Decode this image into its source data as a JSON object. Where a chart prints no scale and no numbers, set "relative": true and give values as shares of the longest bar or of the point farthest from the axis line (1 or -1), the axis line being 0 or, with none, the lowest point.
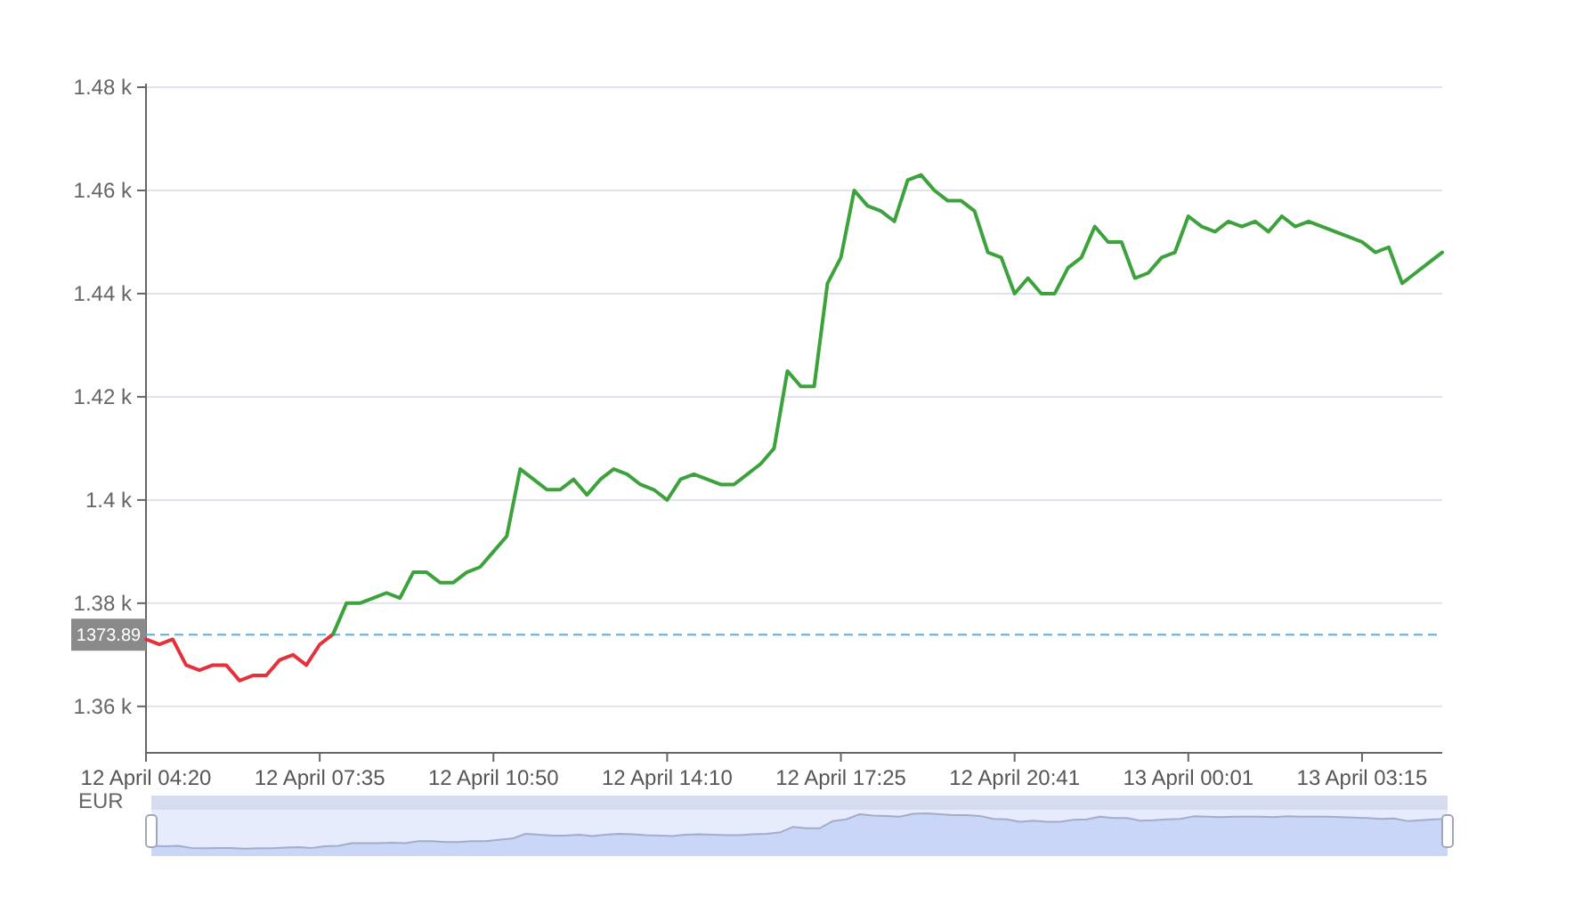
{
  "chart_data": [
    {
      "type": "line",
      "categories": [
        "12 April 04:20",
        null,
        null,
        null,
        null,
        null,
        null,
        null,
        null,
        null,
        null,
        null,
        null,
        "12 April 07:35",
        null,
        null,
        null,
        null,
        null,
        null,
        null,
        null,
        null,
        null,
        null,
        null,
        "12 April 10:50",
        null,
        null,
        null,
        null,
        null,
        null,
        null,
        null,
        null,
        null,
        null,
        null,
        "12 April 14:10",
        null,
        null,
        null,
        null,
        null,
        null,
        null,
        null,
        null,
        null,
        null,
        null,
        "12 April 17:25",
        null,
        null,
        null,
        null,
        null,
        null,
        null,
        null,
        null,
        null,
        null,
        null,
        "12 April 20:41",
        null,
        null,
        null,
        null,
        null,
        null,
        null,
        null,
        null,
        null,
        null,
        null,
        "13 April 00:01",
        null,
        null,
        null,
        null,
        null,
        null,
        null,
        null,
        null,
        null,
        null,
        null,
        "13 April 03:15",
        null,
        null,
        null,
        null,
        null,
        null
      ],
      "ylabel": "EUR",
      "ylim": [
        1351,
        1480
      ],
      "yticks": [
        {
          "value": 1360,
          "label": "1.36 k"
        },
        {
          "value": 1380,
          "label": "1.38 k"
        },
        {
          "value": 1400,
          "label": "1.4 k"
        },
        {
          "value": 1420,
          "label": "1.42 k"
        },
        {
          "value": 1440,
          "label": "1.44 k"
        },
        {
          "value": 1460,
          "label": "1.46 k"
        },
        {
          "value": 1480,
          "label": "1.48 k"
        }
      ],
      "grid": "y",
      "series": [
        {
          "color": "#e4313b",
          "values": [
            1373,
            1372,
            1373,
            1368,
            1367,
            1368,
            1368,
            1365,
            1366,
            1366,
            1369,
            1370,
            1368,
            1372,
            1374,
            null,
            null,
            null,
            null,
            null,
            null,
            null,
            null,
            null,
            null,
            null,
            null,
            null,
            null,
            null,
            null,
            null,
            null,
            null,
            null,
            null,
            null,
            null,
            null,
            null,
            null,
            null,
            null,
            null,
            null,
            null,
            null,
            null,
            null,
            null,
            null,
            null,
            null,
            null,
            null,
            null,
            null,
            null,
            null,
            null,
            null,
            null,
            null,
            null,
            null,
            null,
            null,
            null,
            null,
            null,
            null,
            null,
            null,
            null,
            null,
            null,
            null,
            null,
            null,
            null,
            null,
            null,
            null,
            null,
            null,
            null,
            null,
            null,
            null,
            null,
            null,
            null,
            null,
            null,
            null,
            null,
            null,
            null
          ]
        },
        {
          "color": "#3ca23c",
          "values": [
            null,
            null,
            null,
            null,
            null,
            null,
            null,
            null,
            null,
            null,
            null,
            null,
            null,
            null,
            1374,
            1380,
            1380,
            1381,
            1382,
            1381,
            1386,
            1386,
            1384,
            1384,
            1386,
            1387,
            1390,
            1393,
            1406,
            1404,
            1402,
            1402,
            1404,
            1401,
            1404,
            1406,
            1405,
            1403,
            1402,
            1400,
            1404,
            1405,
            1404,
            1403,
            1403,
            1405,
            1407,
            1410,
            1425,
            1422,
            1422,
            1442,
            1447,
            1460,
            1457,
            1456,
            1454,
            1462,
            1463,
            1460,
            1458,
            1458,
            1456,
            1448,
            1447,
            1440,
            1443,
            1440,
            1440,
            1445,
            1447,
            1453,
            1450,
            1450,
            1443,
            1444,
            1447,
            1448,
            1455,
            1453,
            1452,
            1454,
            1453,
            1454,
            1452,
            1455,
            1453,
            1454,
            1453,
            1452,
            1451,
            1450,
            1448,
            1449,
            1442,
            1444,
            1446,
            1448
          ]
        }
      ],
      "ref_lines": [
        {
          "axis": "y",
          "value": 1373.89,
          "label": "1373.89",
          "color": "#5aaee0",
          "line_style": "dashed"
        }
      ]
    },
    {
      "type": "area",
      "relative": true,
      "categories": [
        null,
        null,
        null,
        null,
        null,
        null,
        null,
        null,
        null,
        null,
        null,
        null,
        null,
        null,
        null,
        null,
        null,
        null,
        null,
        null,
        null,
        null,
        null,
        null,
        null,
        null,
        null,
        null,
        null,
        null,
        null,
        null,
        null,
        null,
        null,
        null,
        null,
        null,
        null,
        null,
        null,
        null,
        null,
        null,
        null,
        null,
        null,
        null,
        null,
        null,
        null,
        null,
        null,
        null,
        null,
        null,
        null,
        null,
        null,
        null,
        null,
        null,
        null,
        null,
        null,
        null,
        null,
        null,
        null,
        null,
        null,
        null,
        null,
        null,
        null,
        null,
        null,
        null,
        null,
        null,
        null,
        null,
        null,
        null,
        null,
        null,
        null,
        null,
        null,
        null,
        null,
        null,
        null,
        null,
        null,
        null,
        null,
        null
      ],
      "color": "#c9d6f8",
      "values": [
        0.24,
        0.23,
        0.24,
        0.19,
        0.18,
        0.19,
        0.19,
        0.17,
        0.18,
        0.18,
        0.2,
        0.21,
        0.19,
        0.23,
        0.24,
        0.3,
        0.3,
        0.3,
        0.31,
        0.3,
        0.35,
        0.35,
        0.33,
        0.33,
        0.35,
        0.35,
        0.38,
        0.41,
        0.52,
        0.5,
        0.48,
        0.48,
        0.5,
        0.47,
        0.5,
        0.52,
        0.51,
        0.49,
        0.48,
        0.47,
        0.5,
        0.51,
        0.5,
        0.49,
        0.49,
        0.51,
        0.52,
        0.55,
        0.68,
        0.65,
        0.65,
        0.82,
        0.86,
        0.98,
        0.95,
        0.94,
        0.92,
        0.99,
        1,
        0.98,
        0.96,
        0.96,
        0.94,
        0.87,
        0.86,
        0.8,
        0.83,
        0.8,
        0.8,
        0.85,
        0.86,
        0.92,
        0.89,
        0.89,
        0.83,
        0.84,
        0.86,
        0.87,
        0.93,
        0.92,
        0.91,
        0.92,
        0.92,
        0.92,
        0.91,
        0.93,
        0.92,
        0.92,
        0.92,
        0.91,
        0.9,
        0.89,
        0.87,
        0.88,
        0.82,
        0.84,
        0.86,
        0.87
      ]
    }
  ]
}
